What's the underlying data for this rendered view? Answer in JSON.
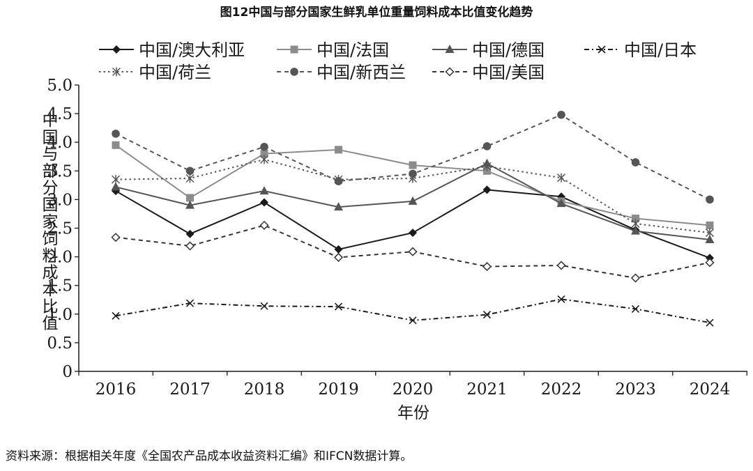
{
  "chart_data": {
    "type": "line",
    "title": "图12中国与部分国家生鲜乳单位重量饲料成本比值变化趋势",
    "xlabel": "年份",
    "ylabel": "中国与部分国家饲料成本比值",
    "categories": [
      "2016",
      "2017",
      "2018",
      "2019",
      "2020",
      "2021",
      "2022",
      "2023",
      "2024"
    ],
    "ylim": [
      0,
      5.0
    ],
    "yticks": [
      "0",
      "0.5",
      "1.0",
      "1.5",
      "2.0",
      "2.5",
      "3.0",
      "3.5",
      "4.0",
      "4.5",
      "5.0"
    ],
    "grid": false,
    "legend_position": "top",
    "series": [
      {
        "name": "中国/澳大利亚",
        "values": [
          3.15,
          2.4,
          2.95,
          2.13,
          2.42,
          3.17,
          3.05,
          2.47,
          1.98
        ],
        "style": "solid",
        "color": "#1a1a1a",
        "marker": "diamond-filled"
      },
      {
        "name": "中国/法国",
        "values": [
          3.95,
          3.03,
          3.8,
          3.87,
          3.6,
          3.5,
          2.97,
          2.67,
          2.55
        ],
        "style": "solid",
        "color": "#8c8c8c",
        "marker": "square-filled"
      },
      {
        "name": "中国/德国",
        "values": [
          3.22,
          2.9,
          3.15,
          2.87,
          2.97,
          3.63,
          2.93,
          2.45,
          2.3
        ],
        "style": "solid",
        "color": "#555555",
        "marker": "triangle-filled"
      },
      {
        "name": "中国/日本",
        "values": [
          0.97,
          1.19,
          1.14,
          1.13,
          0.89,
          0.99,
          1.26,
          1.09,
          0.85
        ],
        "style": "dashdot",
        "color": "#1a1a1a",
        "marker": "x"
      },
      {
        "name": "中国/荷兰",
        "values": [
          3.35,
          3.37,
          3.7,
          3.35,
          3.37,
          3.58,
          3.38,
          2.58,
          2.42
        ],
        "style": "dotted",
        "color": "#555555",
        "marker": "asterisk"
      },
      {
        "name": "中国/新西兰",
        "values": [
          4.15,
          3.5,
          3.92,
          3.32,
          3.45,
          3.93,
          4.48,
          3.65,
          3.0
        ],
        "style": "dashed",
        "color": "#555555",
        "marker": "circle-filled"
      },
      {
        "name": "中国/美国",
        "values": [
          2.34,
          2.19,
          2.55,
          1.99,
          2.09,
          1.83,
          1.85,
          1.63,
          1.9
        ],
        "style": "dashed",
        "color": "#333333",
        "marker": "diamond-open"
      }
    ]
  },
  "source_note": "资料来源：根据相关年度《全国农产品成本收益资料汇编》和IFCN数据计算。"
}
